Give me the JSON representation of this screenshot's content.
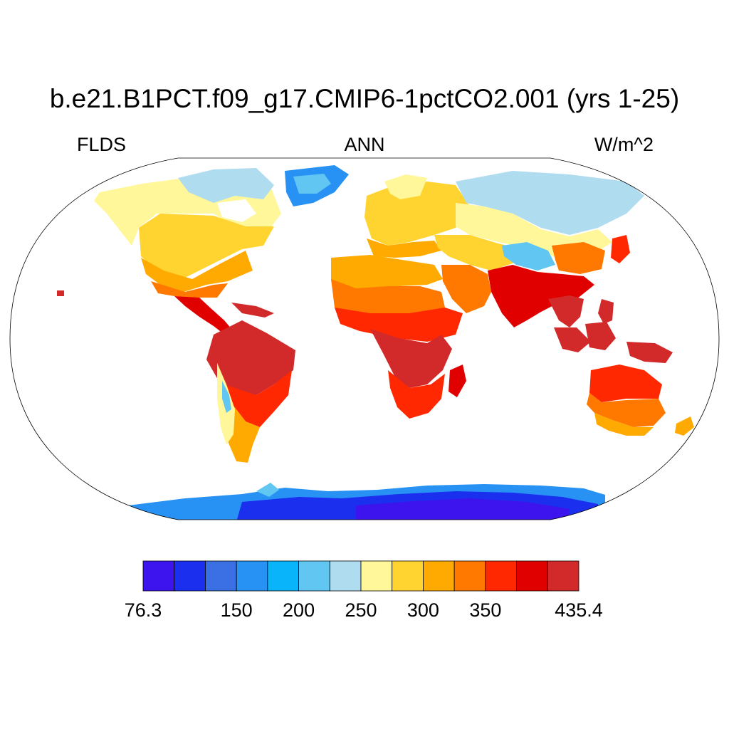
{
  "header": {
    "title": "b.e21.B1PCT.f09_g17.CMIP6-1pctCO2.001 (yrs 1-25)",
    "variable": "FLDS",
    "season": "ANN",
    "units": "W/m^2"
  },
  "colorbar": {
    "min": 76.3,
    "max": 435.4,
    "levels": [
      76.3,
      100,
      125,
      150,
      175,
      200,
      225,
      250,
      275,
      300,
      325,
      350,
      375,
      400,
      435.4
    ],
    "colors": [
      "#3d14ee",
      "#1a30ee",
      "#3b6fe4",
      "#2892f4",
      "#0ab4fa",
      "#62c6f2",
      "#b0dcf0",
      "#fff799",
      "#ffd430",
      "#ffaa00",
      "#ff7800",
      "#ff2800",
      "#e10000",
      "#d22a2a"
    ],
    "labels": [
      {
        "text": "76.3",
        "value": 76.3
      },
      {
        "text": "150",
        "value": 150
      },
      {
        "text": "200",
        "value": 200
      },
      {
        "text": "250",
        "value": 250
      },
      {
        "text": "300",
        "value": 300
      },
      {
        "text": "350",
        "value": 350
      },
      {
        "text": "435.4",
        "value": 435.4
      }
    ]
  }
}
